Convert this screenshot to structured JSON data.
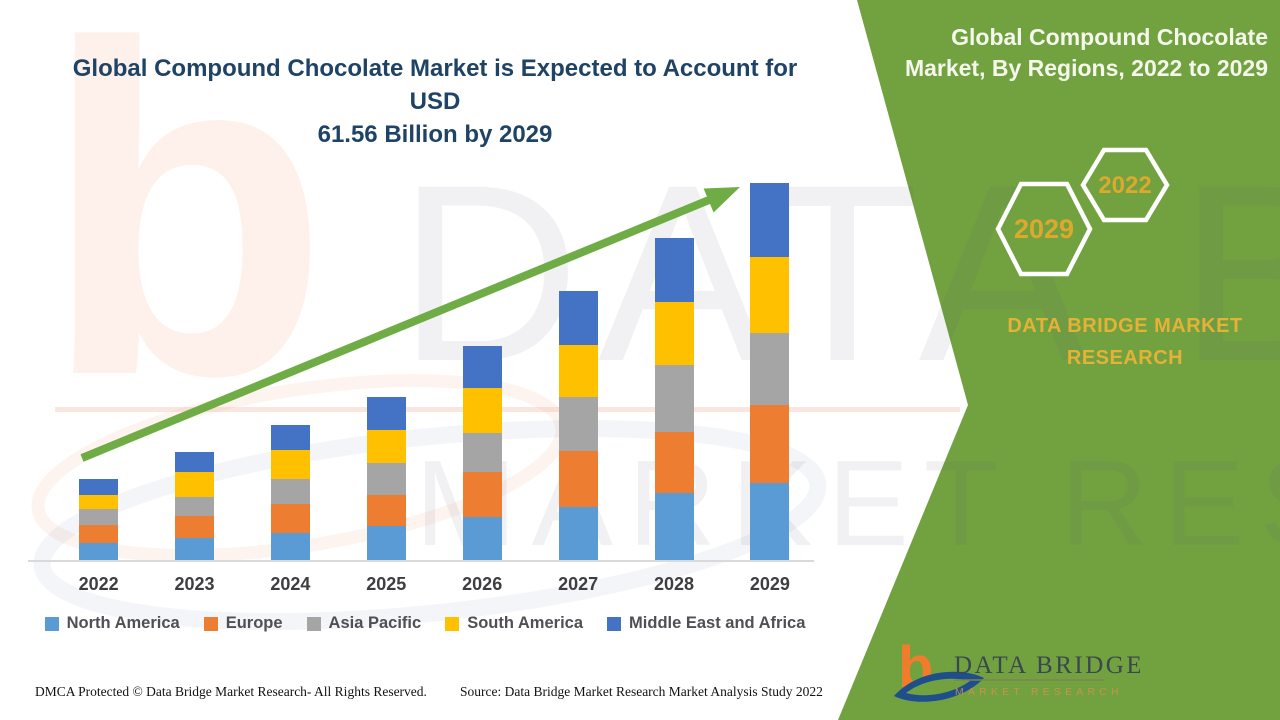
{
  "title": {
    "line1": "Global Compound Chocolate Market is Expected to Account for USD",
    "line2": "61.56 Billion by 2029"
  },
  "panel": {
    "heading_line1": "Global Compound Chocolate",
    "heading_line2": "Market, By Regions, 2022 to 2029",
    "badge_large": "2029",
    "badge_small": "2022",
    "brand_line1": "DATA BRIDGE MARKET",
    "brand_line2": "RESEARCH"
  },
  "logo": {
    "monogram": "b",
    "name": "DATA BRIDGE",
    "subtitle": "MARKET RESEARCH"
  },
  "watermark": {
    "line1": "DATA BRIDGE",
    "line2": "MARKET RESEARCH"
  },
  "footer": {
    "dmca": "DMCA Protected © Data Bridge Market Research- All Rights Reserved.",
    "source": "Source: Data Bridge Market Research Market Analysis Study 2022"
  },
  "colors": {
    "title_blue": "#1F4366",
    "panel_green": "#72A140",
    "panel_text_white": "#F5F7EC",
    "gold": "#DCA92E",
    "arrow_green": "#6FAC45",
    "axis_gray": "#D9D9D9",
    "legend_text": "#4F4F55",
    "logo_orange": "#EF7D2B",
    "logo_blue": "#1F4E8C"
  },
  "chart_data": {
    "type": "bar",
    "stacked": true,
    "title": "Global Compound Chocolate Market is Expected to Account for USD 61.56 Billion by 2029",
    "unit": "USD Billion (values estimated from bar heights; 2029 total labeled 61.56)",
    "categories": [
      "2022",
      "2023",
      "2024",
      "2025",
      "2026",
      "2027",
      "2028",
      "2029"
    ],
    "series": [
      {
        "name": "North America",
        "color": "#5B9BD5",
        "values": [
          2.8,
          3.6,
          4.4,
          5.6,
          7.0,
          8.7,
          10.9,
          12.6
        ]
      },
      {
        "name": "Europe",
        "color": "#ED7D31",
        "values": [
          2.9,
          3.6,
          4.7,
          5.1,
          7.3,
          9.1,
          10.0,
          12.7
        ]
      },
      {
        "name": "Asia Pacific",
        "color": "#A5A5A5",
        "values": [
          2.6,
          3.1,
          4.2,
          5.2,
          6.5,
          8.8,
          10.9,
          11.8
        ]
      },
      {
        "name": "South America",
        "color": "#FFC000",
        "values": [
          2.3,
          4.1,
          4.6,
          5.4,
          7.3,
          8.5,
          10.3,
          12.4
        ]
      },
      {
        "name": "Middle East and Africa",
        "color": "#4472C4",
        "values": [
          2.6,
          3.3,
          4.2,
          5.4,
          6.9,
          8.8,
          10.5,
          12.1
        ]
      }
    ],
    "totals": [
      13.2,
      17.7,
      22.1,
      26.7,
      35.0,
      43.9,
      52.6,
      61.56
    ],
    "ylim": [
      0,
      62
    ],
    "gridlines": false,
    "y_axis_shown": false,
    "legend_position": "bottom",
    "annotations": [
      "green upward trend arrow from 2022 toward 2029"
    ]
  }
}
